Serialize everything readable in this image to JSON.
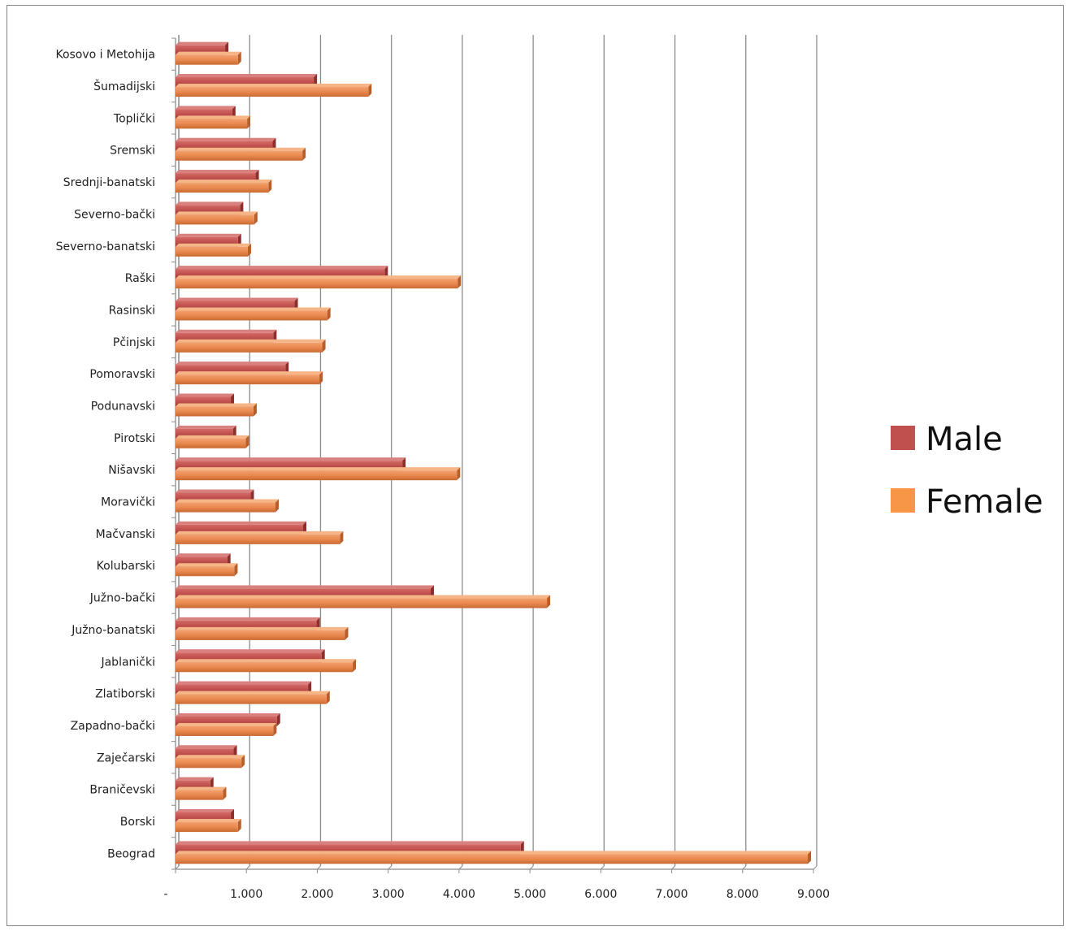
{
  "chart_data": {
    "type": "bar",
    "orientation": "horizontal",
    "categories": [
      "Kosovo i Metohija",
      "Šumadijski",
      "Toplički",
      "Sremski",
      "Srednji-banatski",
      "Severno-bački",
      "Severno-banatski",
      "Raški",
      "Rasinski",
      "Pčinjski",
      "Pomoravski",
      "Podunavski",
      "Pirotski",
      "Nišavski",
      "Moravički",
      "Mačvanski",
      "Kolubarski",
      "Južno-bački",
      "Južno-banatski",
      "Jablanički",
      "Zlatiborski",
      "Zapadno-bački",
      "Zaječarski",
      "Braničevski",
      "Borski",
      "Beograd"
    ],
    "series": [
      {
        "name": "Male",
        "color": "#c0504d",
        "values": [
          700,
          1950,
          800,
          1370,
          1130,
          910,
          880,
          2950,
          1680,
          1380,
          1550,
          780,
          810,
          3200,
          1060,
          1800,
          730,
          3600,
          1990,
          2060,
          1870,
          1430,
          820,
          490,
          780,
          4870
        ]
      },
      {
        "name": "Female",
        "color": "#f79646",
        "values": [
          880,
          2720,
          1010,
          1790,
          1310,
          1110,
          1020,
          3980,
          2140,
          2070,
          2030,
          1100,
          990,
          3970,
          1410,
          2320,
          830,
          5240,
          2390,
          2500,
          2130,
          1380,
          930,
          670,
          880,
          8920
        ]
      }
    ],
    "xlim": [
      0,
      9000
    ],
    "x_ticks": [
      "-",
      "1.000",
      "2.000",
      "3.000",
      "4.000",
      "5.000",
      "6.000",
      "7.000",
      "8.000",
      "9.000"
    ],
    "grid": "vertical major gridlines",
    "legend": "right",
    "title": "",
    "xlabel": "",
    "ylabel": ""
  }
}
